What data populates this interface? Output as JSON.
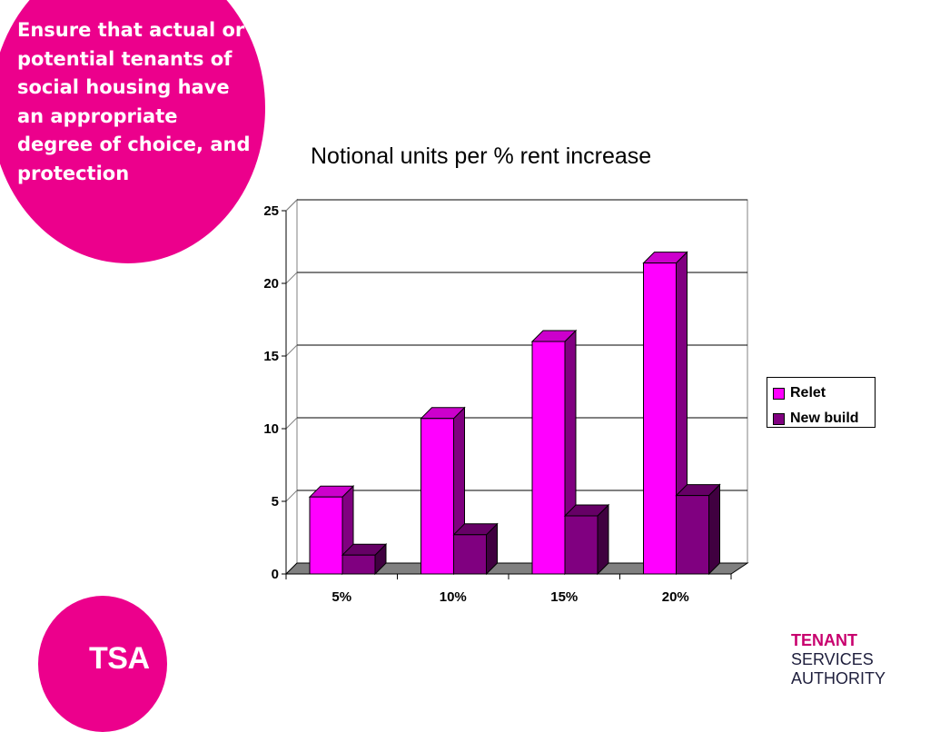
{
  "slide": {
    "heading": "Ensure that actual or potential tenants of social housing have an appropriate degree of choice, and protection",
    "logo_text": "TSA",
    "brand": {
      "line1": "TENANT",
      "line2": "SERVICES",
      "line3": "AUTHORITY"
    },
    "colors": {
      "accent": "#EC008C",
      "brand_dark": "#C8006E"
    }
  },
  "chart_data": {
    "type": "bar",
    "title": "Notional units per % rent increase",
    "xlabel": "",
    "ylabel": "",
    "categories": [
      "5%",
      "10%",
      "15%",
      "20%"
    ],
    "series": [
      {
        "name": "Relet",
        "color": "#FF00FF",
        "values": [
          5.3,
          10.7,
          16.0,
          21.4
        ]
      },
      {
        "name": "New build",
        "color": "#800080",
        "values": [
          1.3,
          2.7,
          4.0,
          5.4
        ]
      }
    ],
    "ylim": [
      0,
      25
    ],
    "yticks": [
      0,
      5,
      10,
      15,
      20,
      25
    ],
    "grid": true,
    "legend_position": "right",
    "three_d": true
  }
}
